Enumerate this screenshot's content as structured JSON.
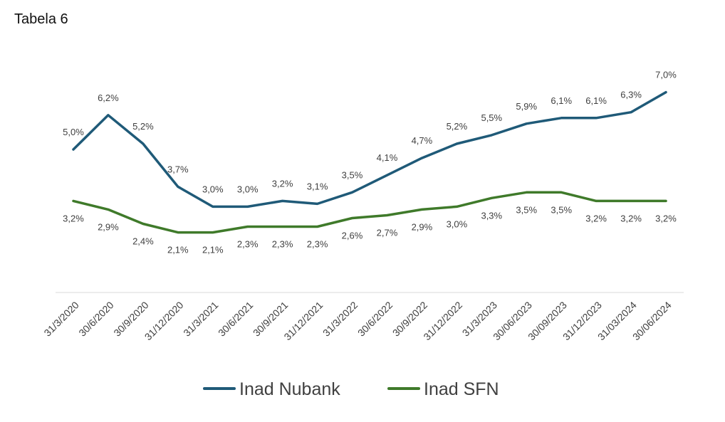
{
  "title": "Tabela 6",
  "chart_data": {
    "type": "line",
    "title": "",
    "xlabel": "",
    "ylabel": "",
    "ylim": [
      0,
      7.5
    ],
    "grid": false,
    "legend": "bottom",
    "categories": [
      "31/3/2020",
      "30/6/2020",
      "30/9/2020",
      "31/12/2020",
      "31/3/2021",
      "30/6/2021",
      "30/9/2021",
      "31/12/2021",
      "31/3/2022",
      "30/6/2022",
      "30/9/2022",
      "31/12/2022",
      "31/3/2023",
      "30/06/2023",
      "30/09/2023",
      "31/12/2023",
      "31/03/2024",
      "30/06/2024"
    ],
    "series": [
      {
        "name": "Inad Nubank",
        "color": "#1f5a78",
        "values": [
          5.0,
          6.2,
          5.2,
          3.7,
          3.0,
          3.0,
          3.2,
          3.1,
          3.5,
          4.1,
          4.7,
          5.2,
          5.5,
          5.9,
          6.1,
          6.1,
          6.3,
          7.0
        ],
        "labels": [
          "5,0%",
          "6,2%",
          "5,2%",
          "3,7%",
          "3,0%",
          "3,0%",
          "3,2%",
          "3,1%",
          "3,5%",
          "4,1%",
          "4,7%",
          "5,2%",
          "5,5%",
          "5,9%",
          "6,1%",
          "6,1%",
          "6,3%",
          "7,0%"
        ]
      },
      {
        "name": "Inad SFN",
        "color": "#3f7a2a",
        "values": [
          3.2,
          2.9,
          2.4,
          2.1,
          2.1,
          2.3,
          2.3,
          2.3,
          2.6,
          2.7,
          2.9,
          3.0,
          3.3,
          3.5,
          3.5,
          3.2,
          3.2,
          3.2
        ],
        "labels": [
          "3,2%",
          "2,9%",
          "2,4%",
          "2,1%",
          "2,1%",
          "2,3%",
          "2,3%",
          "2,3%",
          "2,6%",
          "2,7%",
          "2,9%",
          "3,0%",
          "3,3%",
          "3,5%",
          "3,5%",
          "3,2%",
          "3,2%",
          "3,2%"
        ]
      }
    ]
  }
}
